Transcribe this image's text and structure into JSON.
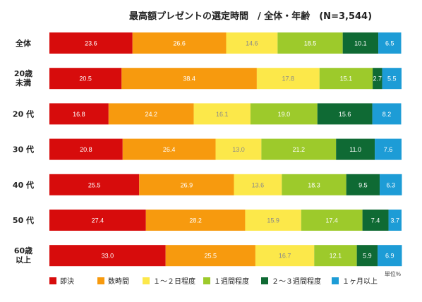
{
  "chart_data": {
    "type": "bar",
    "orientation": "horizontal",
    "stacked": true,
    "percent_stacked": true,
    "title": "最高額プレゼントの選定時間　/ 全体・年齢　(N=3,544)",
    "unit_note": "単位%",
    "categories": [
      [
        "全体"
      ],
      [
        "20歳",
        "未満"
      ],
      [
        "20 代"
      ],
      [
        "30 代"
      ],
      [
        "40 代"
      ],
      [
        "50 代"
      ],
      [
        "60歳",
        "以上"
      ]
    ],
    "series": [
      {
        "name": "即決",
        "color": "#d70c0c",
        "label_color": "#ffffff",
        "values": [
          23.6,
          20.5,
          16.8,
          20.8,
          25.5,
          27.4,
          33.0
        ]
      },
      {
        "name": "数時間",
        "color": "#f79a0e",
        "label_color": "#ffffff",
        "values": [
          26.6,
          38.4,
          24.2,
          26.4,
          26.9,
          28.2,
          25.5
        ]
      },
      {
        "name": "１～２日程度",
        "color": "#fce84a",
        "label_color": "#8a8a8a",
        "values": [
          14.6,
          17.8,
          16.1,
          13.0,
          13.6,
          15.9,
          16.7
        ]
      },
      {
        "name": "１週間程度",
        "color": "#9dca2b",
        "label_color": "#ffffff",
        "values": [
          18.5,
          15.1,
          19.0,
          21.2,
          18.3,
          17.4,
          12.1
        ]
      },
      {
        "name": "２～３週間程度",
        "color": "#0f6a34",
        "label_color": "#ffffff",
        "values": [
          10.1,
          2.7,
          15.6,
          11.0,
          9.5,
          7.4,
          5.9
        ]
      },
      {
        "name": "１ヶ月以上",
        "color": "#1d9cd6",
        "label_color": "#ffffff",
        "values": [
          6.5,
          5.5,
          8.2,
          7.6,
          6.3,
          3.7,
          6.9
        ]
      }
    ],
    "value_labels": [
      [
        "23.6",
        "26.6",
        "14.6",
        "18.5",
        "10.1",
        "6.5"
      ],
      [
        "20.5",
        "38.4",
        "17.8",
        "15.1",
        "2.7",
        "5.5"
      ],
      [
        "16.8",
        "24.2",
        "16.1",
        "19.0",
        "15.6",
        "8.2"
      ],
      [
        "20.8",
        "26.4",
        "13.0",
        "21.2",
        "11.0",
        "7.6"
      ],
      [
        "25.5",
        "26.9",
        "13.6",
        "18.3",
        "9.5",
        "6.3"
      ],
      [
        "27.4",
        "28.2",
        "15.9",
        "17.4",
        "7.4",
        "3.7"
      ],
      [
        "33.0",
        "25.5",
        "16.7",
        "12.1",
        "5.9",
        "6.9"
      ]
    ],
    "xlim": [
      0,
      100
    ],
    "legend_position": "bottom",
    "grid": false
  }
}
